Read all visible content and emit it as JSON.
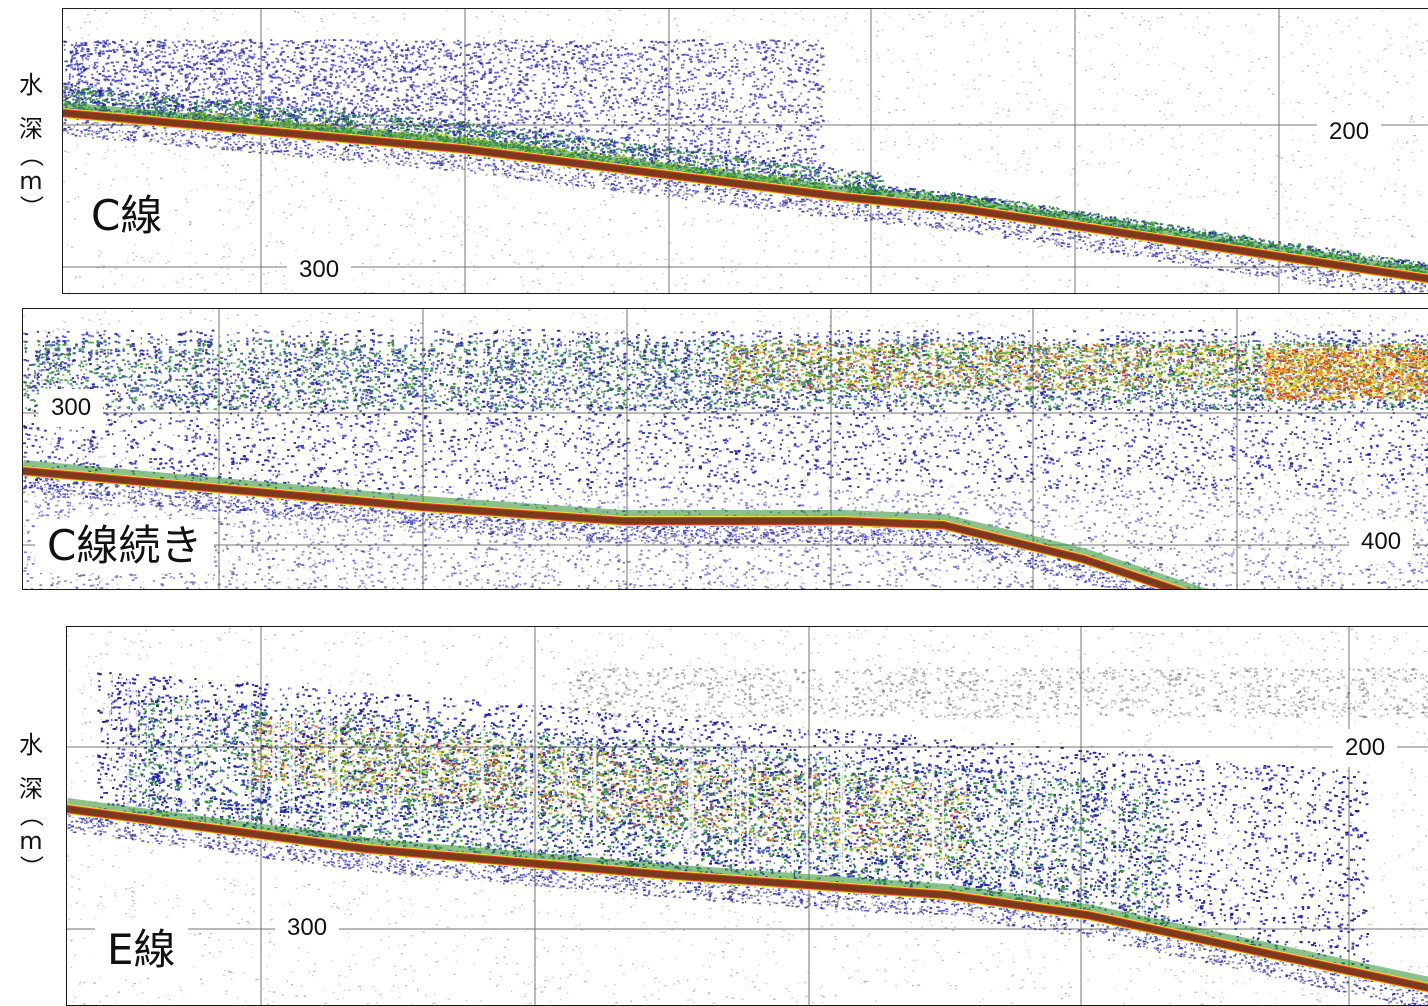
{
  "y_axis_label": {
    "chars": [
      "水",
      "深",
      "（",
      "m",
      "）"
    ]
  },
  "panels": [
    {
      "id": "panel-c",
      "title": "C線",
      "depth_labels": [
        "200",
        "300"
      ],
      "colors": [
        "#1a1aa0",
        "#2f9a2f",
        "#e6e630",
        "#e02020",
        "#7a3a1e"
      ]
    },
    {
      "id": "panel-c2",
      "title": "C線続き",
      "depth_labels": [
        "300",
        "400"
      ]
    },
    {
      "id": "panel-e",
      "title": "E線",
      "depth_labels": [
        "200",
        "300"
      ]
    }
  ],
  "palette": {
    "weak": "#2a2ab0",
    "medium": "#2c8f2c",
    "strong": "#e8e030",
    "peak": "#e23a20",
    "seabed": "#7a3a1e",
    "grid": "#555555"
  }
}
